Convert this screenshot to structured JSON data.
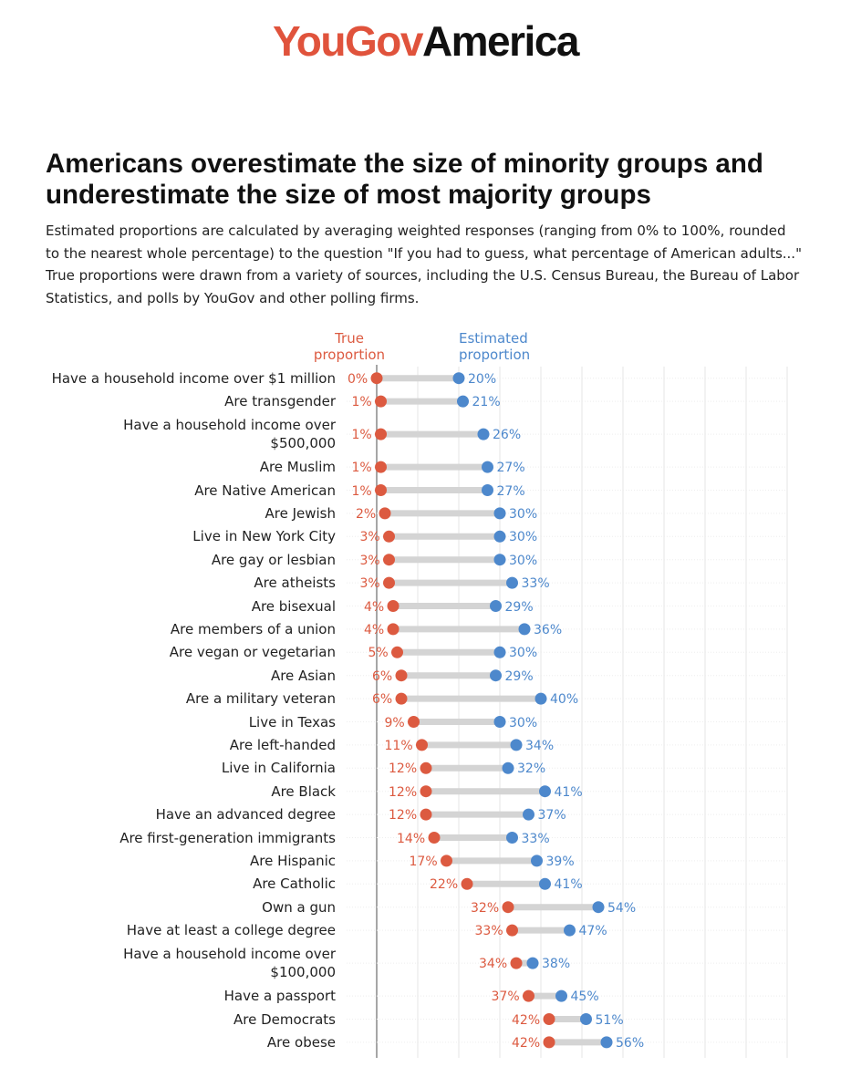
{
  "logo": {
    "part1": "YouGov",
    "part2": "America"
  },
  "chart_data": {
    "type": "dumbbell",
    "title": "Americans overestimate the size of minority groups and underestimate the size of most majority groups",
    "subtitle": "Estimated proportions are calculated by averaging weighted responses (ranging from 0% to 100%, rounded to the nearest whole percentage) to the question \"If you had to guess, what percentage of American adults...\" True proportions were drawn from a variety of sources, including the U.S. Census Bureau, the Bureau of Labor Statistics, and polls by YouGov and other polling firms.",
    "categories": [
      "Have a household income over $1 million",
      "Are transgender",
      "Have a household income over\n$500,000",
      "Are Muslim",
      "Are Native American",
      "Are Jewish",
      "Live in New York City",
      "Are gay or lesbian",
      "Are atheists",
      "Are bisexual",
      "Are members of a union",
      "Are vegan or vegetarian",
      "Are Asian",
      "Are a military veteran",
      "Live in Texas",
      "Are left-handed",
      "Live in California",
      "Are Black",
      "Have an advanced degree",
      "Are first-generation immigrants",
      "Are Hispanic",
      "Are Catholic",
      "Own a gun",
      "Have at least a college degree",
      "Have a household income over\n$100,000",
      "Have a passport",
      "Are Democrats",
      "Are obese"
    ],
    "series": [
      {
        "name": "True proportion",
        "color": "#dc5a40",
        "values": [
          0,
          1,
          1,
          1,
          1,
          2,
          3,
          3,
          3,
          4,
          4,
          5,
          6,
          6,
          9,
          11,
          12,
          12,
          12,
          14,
          17,
          22,
          32,
          33,
          34,
          37,
          42,
          42
        ],
        "value_labels": [
          "0%",
          "1%",
          "1%",
          "1%",
          "1%",
          "2%",
          "3%",
          "3%",
          "3%",
          "4%",
          "4%",
          "5%",
          "6%",
          "6%",
          "9%",
          "11%",
          "12%",
          "12%",
          "12%",
          "14%",
          "17%",
          "22%",
          "32%",
          "33%",
          "34%",
          "37%",
          "42%",
          "42%"
        ]
      },
      {
        "name": "Estimated proportion",
        "color": "#4d88cc",
        "values": [
          20,
          21,
          26,
          27,
          27,
          30,
          30,
          30,
          33,
          29,
          36,
          30,
          29,
          40,
          30,
          34,
          32,
          41,
          37,
          33,
          39,
          41,
          54,
          47,
          38,
          45,
          51,
          56
        ],
        "value_labels": [
          "20%",
          "21%",
          "26%",
          "27%",
          "27%",
          "30%",
          "30%",
          "30%",
          "33%",
          "29%",
          "36%",
          "30%",
          "29%",
          "40%",
          "30%",
          "34%",
          "32%",
          "41%",
          "37%",
          "33%",
          "39%",
          "41%",
          "54%",
          "47%",
          "38%",
          "45%",
          "51%",
          "56%"
        ]
      }
    ],
    "xlim": [
      0,
      100
    ],
    "xticks": [
      0,
      10,
      20,
      30,
      40,
      50,
      60,
      70,
      80,
      90,
      100
    ],
    "grid": true
  }
}
